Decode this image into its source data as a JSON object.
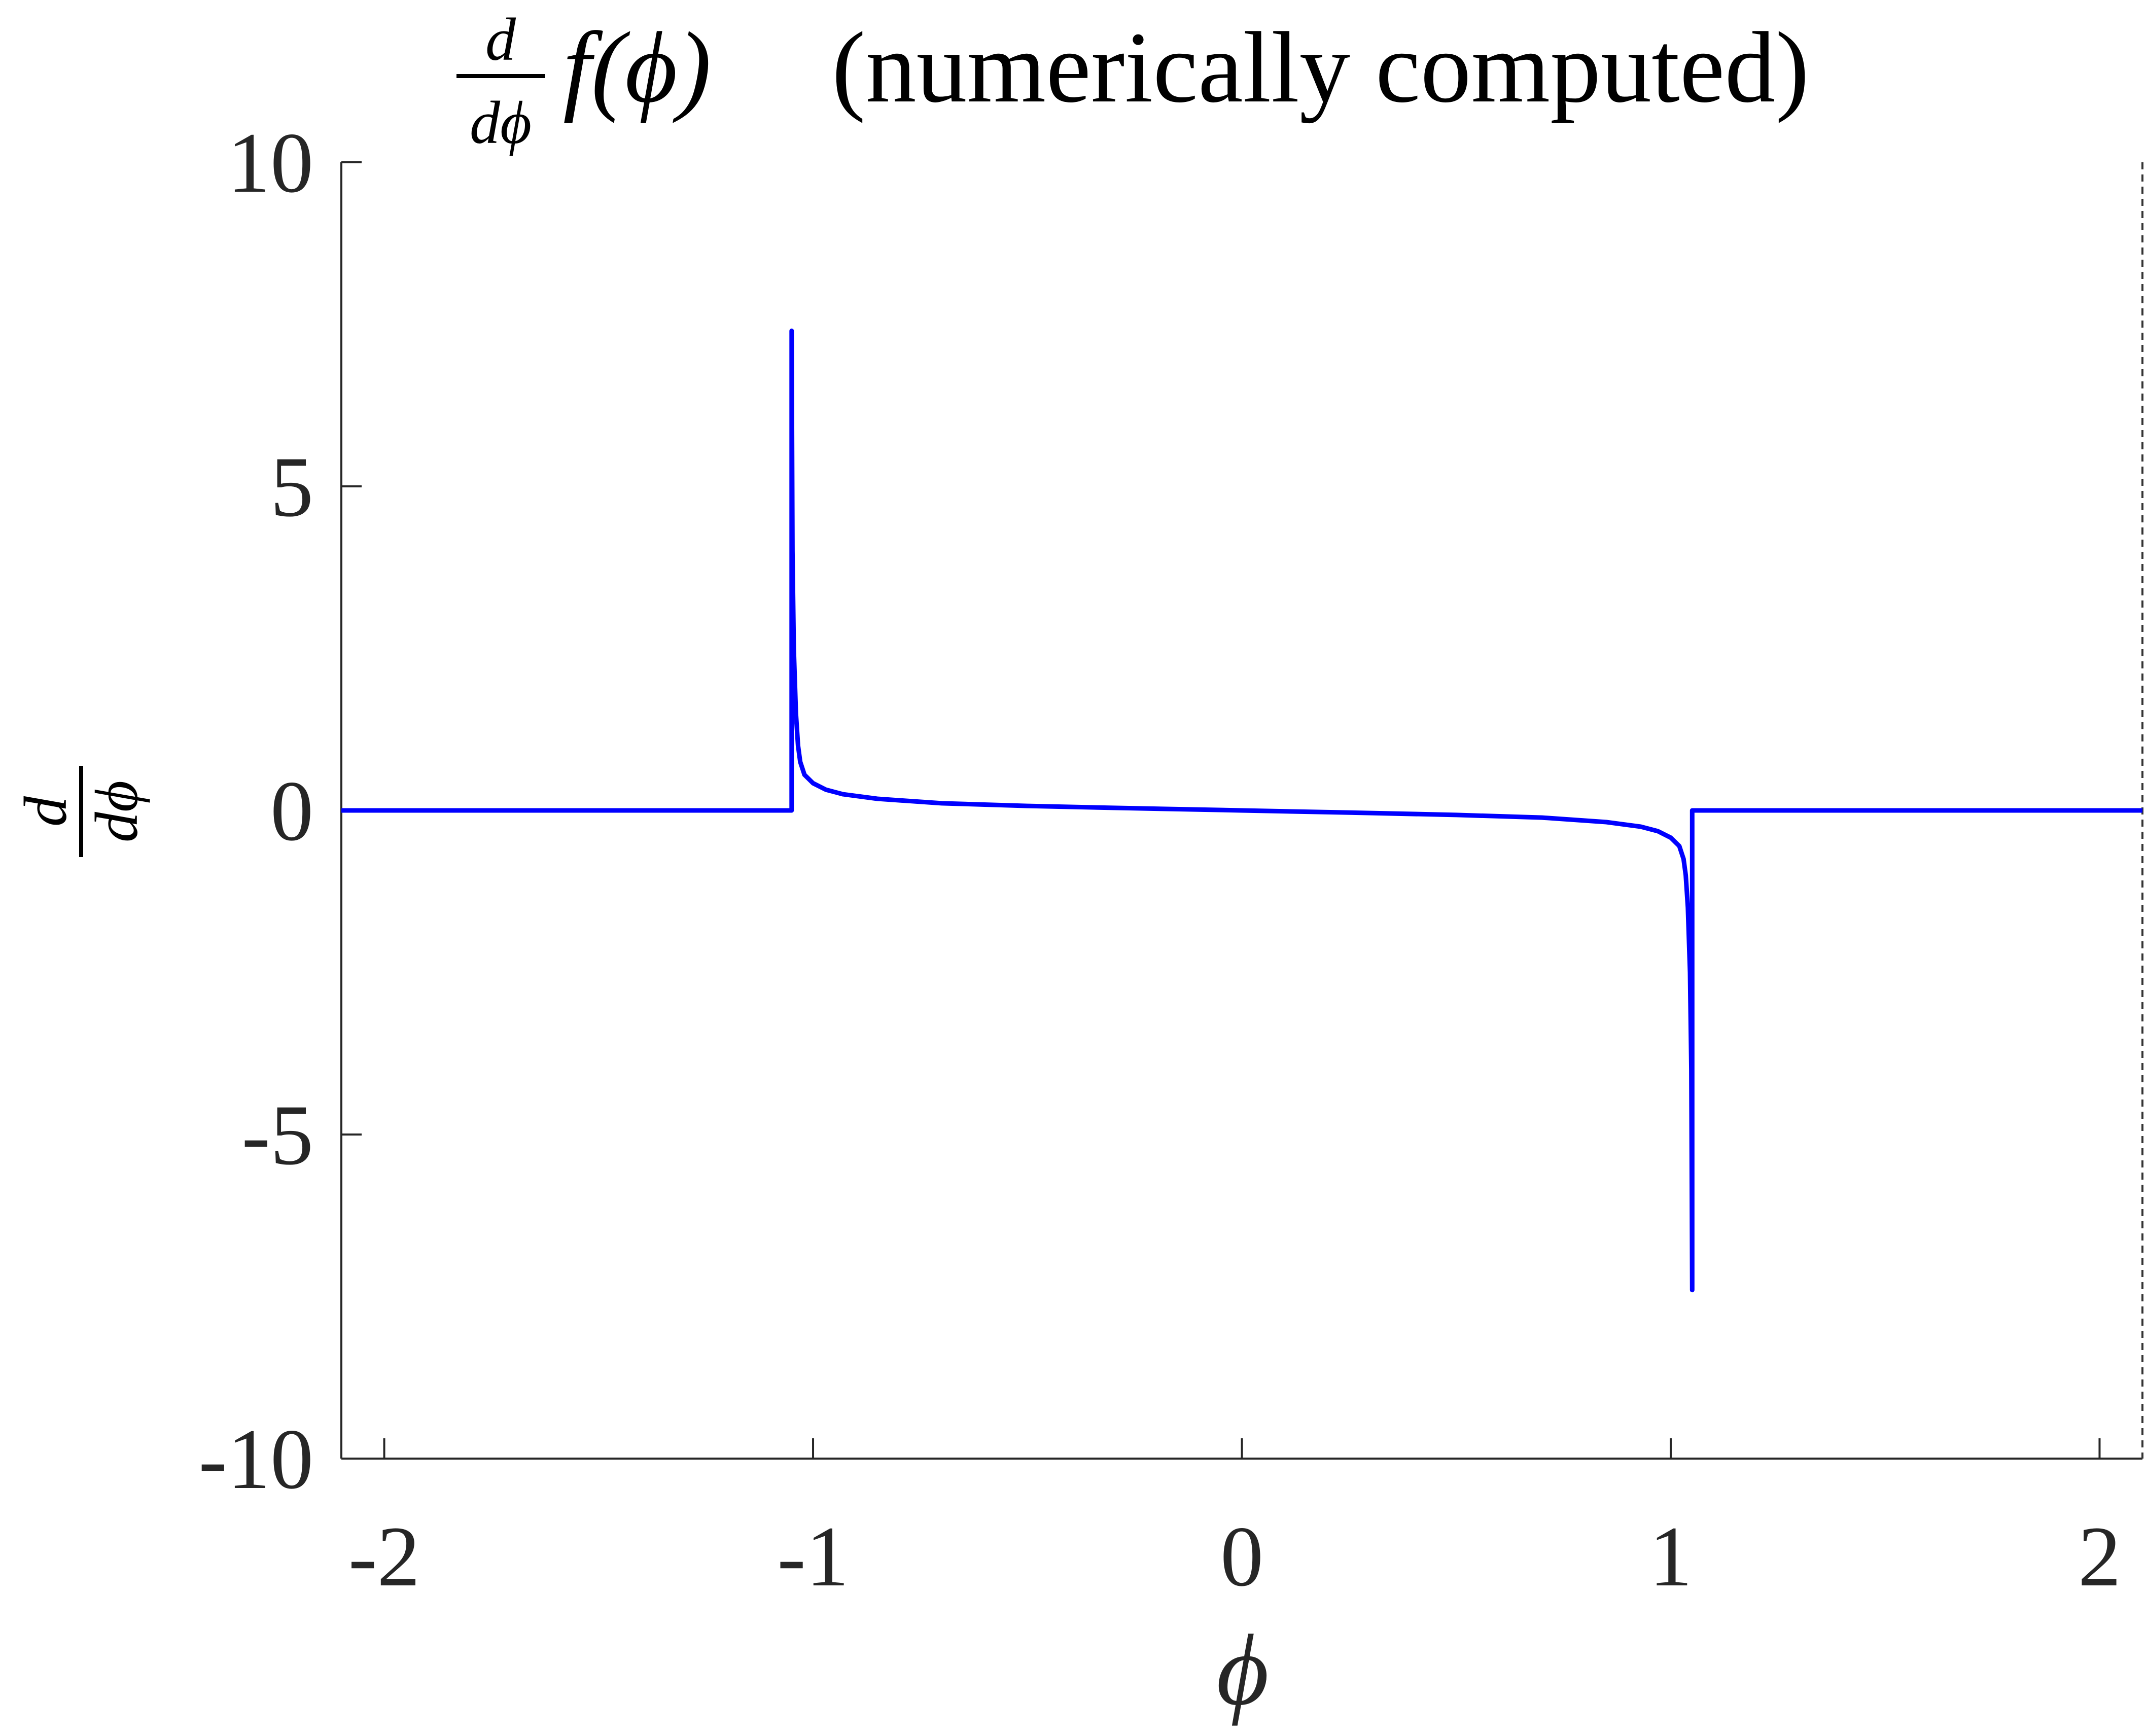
{
  "chart_data": {
    "type": "line",
    "title": {
      "frac_numerator": "d",
      "frac_denominator": "dϕ",
      "function": "f(ϕ)",
      "suffix": "(numerically computed)"
    },
    "xlabel": "ϕ",
    "ylabel": {
      "frac_numerator": "d",
      "frac_denominator": "dϕ"
    },
    "xlim": [
      -2.1,
      2.1
    ],
    "ylim": [
      -10,
      10
    ],
    "xticks": [
      -2,
      -1,
      0,
      1,
      2
    ],
    "xtick_labels": [
      "-2",
      "-1",
      "0",
      "1",
      "2"
    ],
    "yticks": [
      -10,
      -5,
      0,
      5,
      10
    ],
    "ytick_labels": [
      "-10",
      "-5",
      "0",
      "5",
      "10"
    ],
    "grid": false,
    "right_edge_dashed_line": true,
    "series": [
      {
        "color": "#0000ff",
        "x": [
          -2.1,
          -1.05,
          -1.05,
          -1.048,
          -1.045,
          -1.04,
          -1.035,
          -1.03,
          -1.02,
          -1.0,
          -0.97,
          -0.93,
          -0.85,
          -0.7,
          -0.5,
          -0.3,
          0.0,
          0.3,
          0.5,
          0.7,
          0.85,
          0.93,
          0.97,
          1.0,
          1.02,
          1.03,
          1.035,
          1.04,
          1.045,
          1.048,
          1.05,
          1.05,
          2.1
        ],
        "y": [
          0.0,
          0.0,
          7.4,
          4.0,
          2.5,
          1.5,
          1.0,
          0.75,
          0.55,
          0.42,
          0.32,
          0.25,
          0.18,
          0.11,
          0.07,
          0.04,
          0.0,
          -0.04,
          -0.07,
          -0.11,
          -0.18,
          -0.25,
          -0.32,
          -0.42,
          -0.55,
          -0.75,
          -1.0,
          -1.5,
          -2.5,
          -4.0,
          -7.4,
          0.0,
          0.0
        ]
      }
    ]
  }
}
